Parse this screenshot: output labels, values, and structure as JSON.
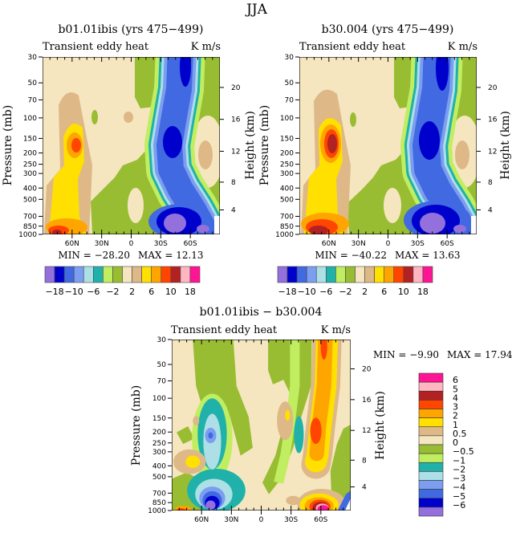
{
  "figure_title": "JJA",
  "colors": {
    "purple": "#9370DB",
    "mediumblue": "#0000CD",
    "royalblue": "#4169E1",
    "cornflower": "#7B9EF0",
    "lightblue": "#ADDFE6",
    "teal": "#20B2AA",
    "lightgreen": "#C0EE60",
    "green": "#98BD32",
    "beige": "#F5E6C0",
    "tan": "#DEB887",
    "yellow": "#FFE000",
    "orange": "#FFA500",
    "orangered": "#FF4500",
    "firebrick": "#B22222",
    "pink": "#FFB6C1",
    "deeppink": "#FF1493"
  },
  "chart_data": [
    {
      "type": "heatmap",
      "title": "b01.01ibis (yrs 475−499)",
      "left_string": "Transient eddy heat",
      "right_string": "K m/s",
      "ylabel": "Pressure (mb)",
      "ylabel_right": "Height (km)",
      "x_ticks": [
        "60N",
        "30N",
        "0",
        "30S",
        "60S"
      ],
      "x_tick_values": [
        60,
        30,
        0,
        -30,
        -60
      ],
      "xlim": [
        90,
        -90
      ],
      "y_ticks": [
        "30",
        "50",
        "70",
        "100",
        "150",
        "200",
        "250",
        "300",
        "400",
        "500",
        "700",
        "850",
        "1000"
      ],
      "y_tick_values": [
        30,
        50,
        70,
        100,
        150,
        200,
        250,
        300,
        400,
        500,
        700,
        850,
        1000
      ],
      "ylim": [
        1000,
        30
      ],
      "y_right_ticks": [
        "4",
        "8",
        "12",
        "16",
        "20"
      ],
      "y_right_tick_values": [
        4,
        8,
        12,
        16,
        20
      ],
      "min_label": "MIN =  −28.20",
      "max_label": "MAX =   12.13",
      "min": -28.2,
      "max": 12.13,
      "colorbar_labels": [
        "−18",
        "−10",
        "−6",
        "−2",
        "2",
        "6",
        "10",
        "18"
      ]
    },
    {
      "type": "heatmap",
      "title": "b30.004 (yrs 475−499)",
      "left_string": "Transient eddy heat",
      "right_string": "K m/s",
      "ylabel": "Pressure (mb)",
      "ylabel_right": "Height (km)",
      "x_ticks": [
        "60N",
        "30N",
        "0",
        "30S",
        "60S"
      ],
      "x_tick_values": [
        60,
        30,
        0,
        -30,
        -60
      ],
      "xlim": [
        90,
        -90
      ],
      "y_ticks": [
        "30",
        "50",
        "70",
        "100",
        "150",
        "200",
        "250",
        "300",
        "400",
        "500",
        "700",
        "850",
        "1000"
      ],
      "y_tick_values": [
        30,
        50,
        70,
        100,
        150,
        200,
        250,
        300,
        400,
        500,
        700,
        850,
        1000
      ],
      "ylim": [
        1000,
        30
      ],
      "y_right_ticks": [
        "4",
        "8",
        "12",
        "16",
        "20"
      ],
      "y_right_tick_values": [
        4,
        8,
        12,
        16,
        20
      ],
      "min_label": "MIN =  −40.22",
      "max_label": "MAX =   13.63",
      "min": -40.22,
      "max": 13.63,
      "colorbar_labels": [
        "−18",
        "−10",
        "−6",
        "−2",
        "2",
        "6",
        "10",
        "18"
      ]
    },
    {
      "type": "heatmap",
      "title": "b01.01ibis − b30.004",
      "left_string": "Transient eddy heat",
      "right_string": "K m/s",
      "ylabel": "Pressure (mb)",
      "ylabel_right": "Height (km)",
      "x_ticks": [
        "60N",
        "30N",
        "0",
        "30S",
        "60S"
      ],
      "x_tick_values": [
        60,
        30,
        0,
        -30,
        -60
      ],
      "xlim": [
        90,
        -90
      ],
      "y_ticks": [
        "30",
        "50",
        "70",
        "100",
        "150",
        "200",
        "250",
        "300",
        "400",
        "500",
        "700",
        "850",
        "1000"
      ],
      "y_tick_values": [
        30,
        50,
        70,
        100,
        150,
        200,
        250,
        300,
        400,
        500,
        700,
        850,
        1000
      ],
      "ylim": [
        1000,
        30
      ],
      "y_right_ticks": [
        "4",
        "8",
        "12",
        "16",
        "20"
      ],
      "y_right_tick_values": [
        4,
        8,
        12,
        16,
        20
      ],
      "min_label": "MIN =   −9.90",
      "max_label": "MAX =   17.94",
      "min": -9.9,
      "max": 17.94,
      "colorbar_labels": [
        "6",
        "5",
        "4",
        "3",
        "2",
        "1",
        "0.5",
        "0",
        "−0.5",
        "−1",
        "−2",
        "−3",
        "−4",
        "−5",
        "−6"
      ]
    }
  ]
}
